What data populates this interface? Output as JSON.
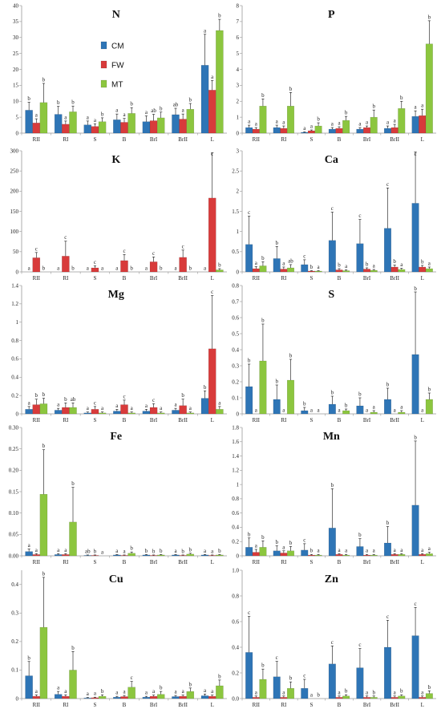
{
  "categories": [
    "RII",
    "RI",
    "S",
    "B",
    "BrI",
    "BrII",
    "L"
  ],
  "legend": [
    {
      "name": "CM",
      "color": "#2E75B6"
    },
    {
      "name": "FW",
      "color": "#D83B3B"
    },
    {
      "name": "MT",
      "color": "#8CC63F"
    }
  ],
  "chart_data": [
    {
      "type": "bar",
      "title": "N",
      "ylim": [
        0,
        40
      ],
      "ticks": [
        0,
        5,
        10,
        15,
        20,
        25,
        30,
        35,
        40
      ],
      "categories": [
        "RII",
        "RI",
        "S",
        "B",
        "BrI",
        "BrII",
        "L"
      ],
      "series": [
        {
          "name": "CM",
          "values": [
            7.2,
            5.9,
            2.6,
            4.2,
            3.6,
            5.8,
            21.3
          ],
          "err": [
            2.5,
            2.5,
            1.2,
            1.8,
            1.8,
            2.0,
            9.7
          ],
          "letters": [
            "b",
            "b",
            "a",
            "a",
            "a",
            "ab",
            "a"
          ]
        },
        {
          "name": "FW",
          "values": [
            3.2,
            2.8,
            2.1,
            3.4,
            3.9,
            4.4,
            13.5
          ],
          "err": [
            1.3,
            1.0,
            0.8,
            1.2,
            2.0,
            1.6,
            3.0
          ],
          "letters": [
            "a",
            "a",
            "a",
            "a",
            "ab",
            "a",
            "a"
          ]
        },
        {
          "name": "MT",
          "values": [
            9.6,
            6.7,
            3.6,
            6.2,
            4.8,
            7.5,
            32.2
          ],
          "err": [
            6.0,
            1.8,
            1.2,
            1.8,
            1.8,
            1.8,
            3.5
          ],
          "letters": [
            "b",
            "b",
            "b",
            "b",
            "b",
            "b",
            "b"
          ]
        }
      ]
    },
    {
      "type": "bar",
      "title": "P",
      "ylim": [
        0,
        8
      ],
      "ticks": [
        0,
        1,
        2,
        3,
        4,
        5,
        6,
        7,
        8
      ],
      "categories": [
        "RII",
        "RI",
        "S",
        "B",
        "BrI",
        "BrII",
        "L"
      ],
      "series": [
        {
          "name": "CM",
          "values": [
            0.35,
            0.35,
            0.05,
            0.25,
            0.25,
            0.3,
            1.05
          ],
          "err": [
            0.15,
            0.15,
            0.03,
            0.1,
            0.1,
            0.15,
            0.35
          ],
          "letters": [
            "a",
            "a",
            "a",
            "a",
            "a",
            "a",
            "a"
          ]
        },
        {
          "name": "FW",
          "values": [
            0.25,
            0.3,
            0.15,
            0.3,
            0.35,
            0.35,
            1.1
          ],
          "err": [
            0.1,
            0.15,
            0.05,
            0.1,
            0.1,
            0.2,
            0.4
          ],
          "letters": [
            "a",
            "a",
            "a",
            "a",
            "a",
            "a",
            "a"
          ]
        },
        {
          "name": "MT",
          "values": [
            1.7,
            1.7,
            0.45,
            0.8,
            1.0,
            1.55,
            5.6
          ],
          "err": [
            0.45,
            0.85,
            0.2,
            0.25,
            0.45,
            0.45,
            1.45
          ],
          "letters": [
            "b",
            "b",
            "b",
            "b",
            "b",
            "b",
            "b"
          ]
        }
      ]
    },
    {
      "type": "bar",
      "title": "K",
      "ylim": [
        0,
        300
      ],
      "ticks": [
        0,
        50,
        100,
        150,
        200,
        250,
        300
      ],
      "categories": [
        "RII",
        "RI",
        "S",
        "B",
        "BrI",
        "BrII",
        "L"
      ],
      "series": [
        {
          "name": "CM",
          "values": [
            0,
            0,
            0,
            0,
            0,
            0,
            0
          ],
          "err": [
            0,
            0,
            0,
            0,
            0,
            0,
            0
          ],
          "letters": [
            "a",
            "a",
            "a",
            "a",
            "a",
            "a",
            "a"
          ]
        },
        {
          "name": "FW",
          "values": [
            35,
            39,
            10,
            28,
            25,
            36,
            183
          ],
          "err": [
            13,
            37,
            5,
            15,
            12,
            18,
            112
          ],
          "letters": [
            "c",
            "c",
            "c",
            "c",
            "c",
            "c",
            "c"
          ]
        },
        {
          "name": "MT",
          "values": [
            0,
            0,
            0,
            0,
            0,
            0,
            5
          ],
          "err": [
            0,
            0,
            0,
            0,
            0,
            0,
            3
          ],
          "letters": [
            "b",
            "b",
            "a",
            "b",
            "b",
            "b",
            "b"
          ]
        }
      ]
    },
    {
      "type": "bar",
      "title": "Ca",
      "ylim": [
        0,
        3
      ],
      "ticks": [
        0,
        0.5,
        1,
        1.5,
        2,
        2.5,
        3
      ],
      "categories": [
        "RII",
        "RI",
        "S",
        "B",
        "BrI",
        "BrII",
        "L"
      ],
      "series": [
        {
          "name": "CM",
          "values": [
            0.68,
            0.33,
            0.18,
            0.78,
            0.7,
            1.08,
            1.7
          ],
          "err": [
            0.7,
            0.3,
            0.12,
            0.7,
            0.6,
            1.0,
            1.27
          ],
          "letters": [
            "c",
            "b",
            "c",
            "c",
            "c",
            "c",
            "c"
          ]
        },
        {
          "name": "FW",
          "values": [
            0.08,
            0.07,
            0.02,
            0.05,
            0.07,
            0.12,
            0.12
          ],
          "err": [
            0.05,
            0.05,
            0.01,
            0.03,
            0.03,
            0.05,
            0.04
          ],
          "letters": [
            "a",
            "a",
            "b",
            "b",
            "b",
            "b",
            "b"
          ]
        },
        {
          "name": "MT",
          "values": [
            0.15,
            0.1,
            0.02,
            0.03,
            0.04,
            0.06,
            0.08
          ],
          "err": [
            0.1,
            0.08,
            0.01,
            0.02,
            0.02,
            0.03,
            0.04
          ],
          "letters": [
            "b",
            "ab",
            "a",
            "a",
            "a",
            "a",
            "a"
          ]
        }
      ]
    },
    {
      "type": "bar",
      "title": "Mg",
      "ylim": [
        0,
        1.4
      ],
      "ticks": [
        0,
        0.2,
        0.4,
        0.6,
        0.8,
        1,
        1.2,
        1.4
      ],
      "categories": [
        "RII",
        "RI",
        "S",
        "B",
        "BrI",
        "BrII",
        "L"
      ],
      "series": [
        {
          "name": "CM",
          "values": [
            0.05,
            0.04,
            0.01,
            0.03,
            0.03,
            0.04,
            0.17
          ],
          "err": [
            0.03,
            0.02,
            0.01,
            0.02,
            0.02,
            0.02,
            0.08
          ],
          "letters": [
            "a",
            "a",
            "a",
            "a",
            "a",
            "a",
            "b"
          ]
        },
        {
          "name": "FW",
          "values": [
            0.1,
            0.07,
            0.05,
            0.1,
            0.07,
            0.09,
            0.71
          ],
          "err": [
            0.06,
            0.05,
            0.03,
            0.05,
            0.04,
            0.07,
            0.58
          ],
          "letters": [
            "b",
            "b",
            "c",
            "c",
            "c",
            "b",
            "c"
          ]
        },
        {
          "name": "MT",
          "values": [
            0.11,
            0.07,
            0.01,
            0.01,
            0.01,
            0.01,
            0.05
          ],
          "err": [
            0.06,
            0.05,
            0.01,
            0.01,
            0.01,
            0.01,
            0.03
          ],
          "letters": [
            "b",
            "ab",
            "a",
            "a",
            "a",
            "a",
            "a"
          ]
        }
      ]
    },
    {
      "type": "bar",
      "title": "S",
      "ylim": [
        0,
        0.8
      ],
      "ticks": [
        0,
        0.1,
        0.2,
        0.3,
        0.4,
        0.5,
        0.6,
        0.7,
        0.8
      ],
      "categories": [
        "RII",
        "RI",
        "S",
        "B",
        "BrI",
        "BrII",
        "L"
      ],
      "series": [
        {
          "name": "CM",
          "values": [
            0.17,
            0.09,
            0.02,
            0.06,
            0.05,
            0.09,
            0.37
          ],
          "err": [
            0.14,
            0.09,
            0.02,
            0.05,
            0.05,
            0.07,
            0.39
          ],
          "letters": [
            "b",
            "b",
            "b",
            "b",
            "b",
            "b",
            "b"
          ]
        },
        {
          "name": "FW",
          "values": [
            0.0,
            0.0,
            0.0,
            0.0,
            0.0,
            0.0,
            0.0
          ],
          "err": [
            0,
            0,
            0,
            0,
            0,
            0,
            0
          ],
          "letters": [
            "a",
            "a",
            "a",
            "a",
            "a",
            "a",
            "a"
          ]
        },
        {
          "name": "MT",
          "values": [
            0.33,
            0.21,
            0.0,
            0.02,
            0.01,
            0.01,
            0.09
          ],
          "err": [
            0.23,
            0.13,
            0,
            0.01,
            0.01,
            0.01,
            0.04
          ],
          "letters": [
            "b",
            "b",
            "a",
            "b",
            "a",
            "a",
            "b"
          ]
        }
      ]
    },
    {
      "type": "bar",
      "title": "Fe",
      "ylim": [
        0,
        0.3
      ],
      "ticks": [
        0,
        0.05,
        0.1,
        0.15,
        0.2,
        0.25,
        0.3
      ],
      "tickLabels": [
        "0.00",
        "0.05",
        "0.10",
        "0.15",
        "0.20",
        "0.25",
        "0.30"
      ],
      "categories": [
        "RII",
        "RI",
        "S",
        "B",
        "BrI",
        "BrII",
        "L"
      ],
      "series": [
        {
          "name": "CM",
          "values": [
            0.01,
            0.003,
            0.001,
            0.002,
            0.002,
            0.002,
            0.002
          ],
          "err": [
            0.006,
            0.002,
            0.001,
            0.001,
            0.001,
            0.001,
            0.001
          ],
          "letters": [
            "a",
            "a",
            "ab",
            "a",
            "b",
            "a",
            "a"
          ]
        },
        {
          "name": "FW",
          "values": [
            0.003,
            0.003,
            0.001,
            0.001,
            0.001,
            0.001,
            0.001
          ],
          "err": [
            0.002,
            0.002,
            0.001,
            0.001,
            0.001,
            0.001,
            0.001
          ],
          "letters": [
            "a",
            "a",
            "b",
            "a",
            "b",
            "b",
            "a"
          ]
        },
        {
          "name": "MT",
          "values": [
            0.144,
            0.079,
            0.0,
            0.006,
            0.002,
            0.004,
            0.002
          ],
          "err": [
            0.104,
            0.081,
            0,
            0.003,
            0.001,
            0.002,
            0.001
          ],
          "letters": [
            "b",
            "b",
            "a",
            "b",
            "b",
            "b",
            "b"
          ]
        }
      ]
    },
    {
      "type": "bar",
      "title": "Mn",
      "ylim": [
        0,
        1.8
      ],
      "ticks": [
        0,
        0.2,
        0.4,
        0.6,
        0.8,
        1,
        1.2,
        1.4,
        1.6,
        1.8
      ],
      "categories": [
        "RII",
        "RI",
        "S",
        "B",
        "BrI",
        "BrII",
        "L"
      ],
      "series": [
        {
          "name": "CM",
          "values": [
            0.12,
            0.07,
            0.08,
            0.39,
            0.13,
            0.18,
            0.71
          ],
          "err": [
            0.13,
            0.07,
            0.09,
            0.55,
            0.11,
            0.23,
            0.9
          ],
          "letters": [
            "b",
            "b",
            "c",
            "b",
            "b",
            "b",
            "b"
          ]
        },
        {
          "name": "FW",
          "values": [
            0.05,
            0.04,
            0.01,
            0.02,
            0.01,
            0.02,
            0.02
          ],
          "err": [
            0.04,
            0.03,
            0.01,
            0.01,
            0.01,
            0.01,
            0.01
          ],
          "letters": [
            "a",
            "a",
            "b",
            "a",
            "a",
            "a",
            "a"
          ]
        },
        {
          "name": "MT",
          "values": [
            0.12,
            0.07,
            0.01,
            0.01,
            0.01,
            0.02,
            0.03
          ],
          "err": [
            0.09,
            0.06,
            0.01,
            0.01,
            0.01,
            0.01,
            0.02
          ],
          "letters": [
            "b",
            "b",
            "a",
            "a",
            "a",
            "a",
            "a"
          ]
        }
      ]
    },
    {
      "type": "bar",
      "title": "Cu",
      "ylim": [
        0,
        0.45
      ],
      "ticks": [
        0,
        0.1,
        0.2,
        0.3,
        0.4
      ],
      "categories": [
        "RII",
        "RI",
        "S",
        "B",
        "BrI",
        "BrII",
        "L"
      ],
      "series": [
        {
          "name": "CM",
          "values": [
            0.08,
            0.015,
            0.002,
            0.005,
            0.005,
            0.007,
            0.01
          ],
          "err": [
            0.05,
            0.01,
            0.002,
            0.003,
            0.003,
            0.004,
            0.006
          ],
          "letters": [
            "b",
            "a",
            "a",
            "a",
            "a",
            "a",
            "a"
          ]
        },
        {
          "name": "FW",
          "values": [
            0.008,
            0.008,
            0.003,
            0.007,
            0.008,
            0.008,
            0.008
          ],
          "err": [
            0.005,
            0.005,
            0.002,
            0.004,
            0.004,
            0.004,
            0.004
          ],
          "letters": [
            "a",
            "a",
            "a",
            "a",
            "a",
            "a",
            "a"
          ]
        },
        {
          "name": "MT",
          "values": [
            0.25,
            0.1,
            0.008,
            0.04,
            0.015,
            0.025,
            0.045
          ],
          "err": [
            0.175,
            0.065,
            0.005,
            0.02,
            0.01,
            0.012,
            0.02
          ],
          "letters": [
            "b",
            "b",
            "b",
            "c",
            "b",
            "b",
            "b"
          ]
        }
      ]
    },
    {
      "type": "bar",
      "title": "Zn",
      "ylim": [
        0,
        1.0
      ],
      "ticks": [
        0,
        0.2,
        0.4,
        0.6,
        0.8,
        1
      ],
      "tickLabels": [
        "0.0",
        "0.2",
        "0.4",
        "0.6",
        "0.8",
        "1.0"
      ],
      "categories": [
        "RII",
        "RI",
        "S",
        "B",
        "BrI",
        "BrII",
        "L"
      ],
      "series": [
        {
          "name": "CM",
          "values": [
            0.36,
            0.17,
            0.08,
            0.27,
            0.24,
            0.4,
            0.49
          ],
          "err": [
            0.28,
            0.12,
            0.07,
            0.14,
            0.15,
            0.21,
            0.22
          ],
          "letters": [
            "c",
            "c",
            "c",
            "c",
            "c",
            "c",
            "c"
          ]
        },
        {
          "name": "FW",
          "values": [
            0.01,
            0.01,
            0.0,
            0.01,
            0.01,
            0.01,
            0.01
          ],
          "err": [
            0.01,
            0.01,
            0.0,
            0.01,
            0.01,
            0.01,
            0.01
          ],
          "letters": [
            "a",
            "a",
            "a",
            "a",
            "a",
            "a",
            "a"
          ]
        },
        {
          "name": "MT",
          "values": [
            0.15,
            0.08,
            0.0,
            0.02,
            0.01,
            0.02,
            0.04
          ],
          "err": [
            0.08,
            0.05,
            0.0,
            0.01,
            0.01,
            0.01,
            0.02
          ],
          "letters": [
            "b",
            "b",
            "b",
            "b",
            "b",
            "b",
            "b"
          ]
        }
      ]
    }
  ]
}
